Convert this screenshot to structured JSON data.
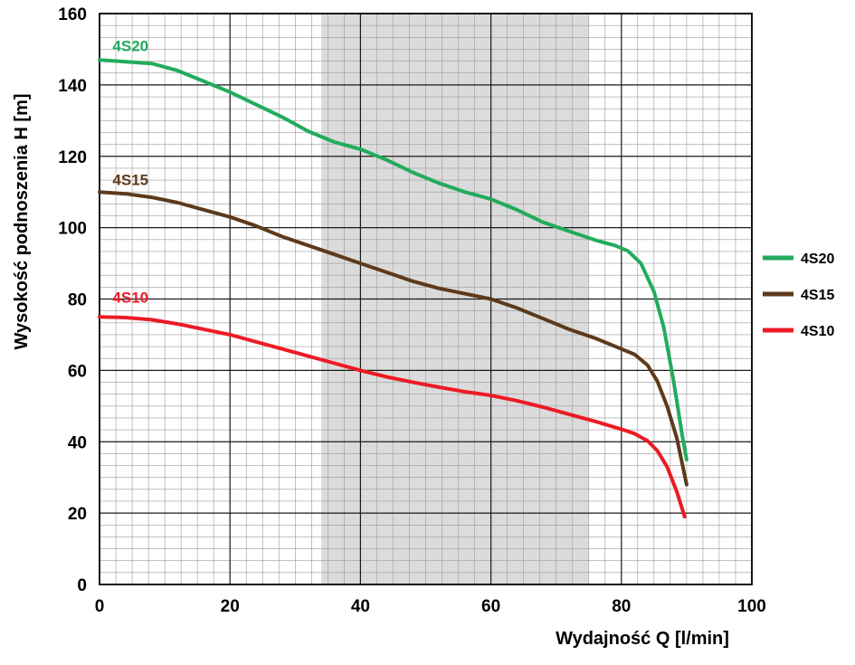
{
  "chart_data": {
    "type": "line",
    "title": "",
    "xlabel": "Wydajność Q [l/min]",
    "ylabel": "Wysokość podnoszenia H [m]",
    "xlim": [
      0,
      100
    ],
    "ylim": [
      0,
      160
    ],
    "x_major_ticks": [
      0,
      20,
      40,
      60,
      80,
      100
    ],
    "y_major_ticks": [
      0,
      20,
      40,
      60,
      80,
      100,
      120,
      140,
      160
    ],
    "x_minor_per_major": 8,
    "y_minor_per_major": 6,
    "grid": "major+minor",
    "legend_position": "right",
    "shaded_band": {
      "x0": 34,
      "x1": 75,
      "color": "#dbdbdb"
    },
    "series": [
      {
        "name": "4S20",
        "color": "#22ab5c",
        "label_pos": {
          "x": 2,
          "y": 149.5
        },
        "points": [
          [
            0,
            147
          ],
          [
            4,
            146.5
          ],
          [
            8,
            146
          ],
          [
            12,
            144
          ],
          [
            16,
            141
          ],
          [
            20,
            138
          ],
          [
            24,
            134.5
          ],
          [
            28,
            131
          ],
          [
            32,
            127
          ],
          [
            36,
            124
          ],
          [
            40,
            122
          ],
          [
            44,
            119
          ],
          [
            48,
            115.5
          ],
          [
            52,
            112.5
          ],
          [
            56,
            110
          ],
          [
            60,
            108
          ],
          [
            64,
            105
          ],
          [
            68,
            101.5
          ],
          [
            72,
            99
          ],
          [
            76,
            96.5
          ],
          [
            79,
            95
          ],
          [
            81,
            93.5
          ],
          [
            83,
            90
          ],
          [
            85,
            82
          ],
          [
            86.5,
            72
          ],
          [
            88,
            57
          ],
          [
            89.3,
            42
          ],
          [
            90,
            35
          ]
        ]
      },
      {
        "name": "4S15",
        "color": "#5d3a1b",
        "label_pos": {
          "x": 2,
          "y": 112
        },
        "points": [
          [
            0,
            110
          ],
          [
            4,
            109.5
          ],
          [
            8,
            108.5
          ],
          [
            12,
            107
          ],
          [
            16,
            105
          ],
          [
            20,
            103
          ],
          [
            24,
            100.5
          ],
          [
            28,
            97.5
          ],
          [
            32,
            95
          ],
          [
            36,
            92.5
          ],
          [
            40,
            90
          ],
          [
            44,
            87.5
          ],
          [
            48,
            85
          ],
          [
            52,
            83
          ],
          [
            56,
            81.5
          ],
          [
            60,
            80
          ],
          [
            64,
            77.5
          ],
          [
            68,
            74.5
          ],
          [
            72,
            71.5
          ],
          [
            76,
            69
          ],
          [
            80,
            66
          ],
          [
            82,
            64.5
          ],
          [
            84,
            61.5
          ],
          [
            85.5,
            57
          ],
          [
            87,
            50
          ],
          [
            88.5,
            41
          ],
          [
            90,
            28
          ]
        ]
      },
      {
        "name": "4S10",
        "color": "#ec1b24",
        "label_pos": {
          "x": 2,
          "y": 79
        },
        "points": [
          [
            0,
            75
          ],
          [
            4,
            74.8
          ],
          [
            8,
            74.2
          ],
          [
            12,
            73
          ],
          [
            16,
            71.5
          ],
          [
            20,
            70
          ],
          [
            24,
            68
          ],
          [
            28,
            66
          ],
          [
            32,
            64
          ],
          [
            36,
            62
          ],
          [
            40,
            60
          ],
          [
            44,
            58.2
          ],
          [
            48,
            56.7
          ],
          [
            52,
            55.3
          ],
          [
            56,
            54
          ],
          [
            60,
            53
          ],
          [
            64,
            51.5
          ],
          [
            68,
            49.7
          ],
          [
            72,
            47.7
          ],
          [
            76,
            45.7
          ],
          [
            80,
            43.5
          ],
          [
            82,
            42.3
          ],
          [
            84,
            40.3
          ],
          [
            85.5,
            37.5
          ],
          [
            87,
            33
          ],
          [
            88.5,
            26
          ],
          [
            89.7,
            19
          ]
        ]
      }
    ],
    "legend": [
      {
        "label": "4S20",
        "color": "#22ab5c"
      },
      {
        "label": "4S15",
        "color": "#5d3a1b"
      },
      {
        "label": "4S10",
        "color": "#ec1b24"
      }
    ]
  },
  "style_colors": {
    "background": "#ffffff",
    "grid_major": "#1a1a1a",
    "grid_minor": "#9b9b9b",
    "axis": "#000000"
  }
}
